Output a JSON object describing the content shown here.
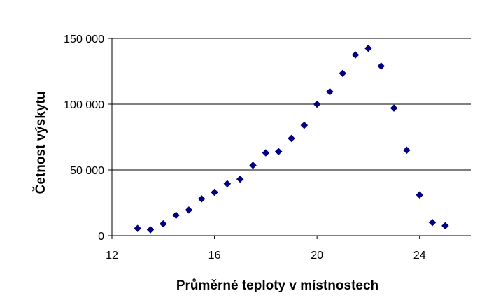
{
  "chart_data": {
    "type": "scatter",
    "title": "",
    "xlabel": "Průměrné teploty v místnostech",
    "ylabel": "Četnost výskytu",
    "xlim": [
      12,
      26
    ],
    "ylim": [
      0,
      150000
    ],
    "x_ticks": [
      12,
      16,
      20,
      24
    ],
    "x_tick_labels": [
      "12",
      "16",
      "20",
      "24"
    ],
    "y_ticks": [
      0,
      50000,
      100000,
      150000
    ],
    "y_tick_labels": [
      "0",
      "50 000",
      "100 000",
      "150 000"
    ],
    "grid": "horizontal",
    "legend": "none",
    "marker": "diamond",
    "colors": {
      "marker": "#000080",
      "grid": "#000000",
      "axis": "#000000"
    },
    "series": [
      {
        "x": [
          13,
          13.5,
          14,
          14.5,
          15,
          15.5,
          16,
          16.5,
          17,
          17.5,
          18,
          18.5,
          19,
          19.5,
          20,
          20.5,
          21,
          21.5,
          22,
          22.5,
          23,
          23.5,
          24,
          24.5,
          25
        ],
        "y": [
          5500,
          4500,
          9000,
          15500,
          19500,
          28000,
          33000,
          39500,
          43000,
          53500,
          63000,
          64000,
          74000,
          84000,
          100000,
          109500,
          123500,
          137500,
          142500,
          129000,
          97000,
          65000,
          31000,
          10000,
          7500
        ]
      }
    ]
  }
}
